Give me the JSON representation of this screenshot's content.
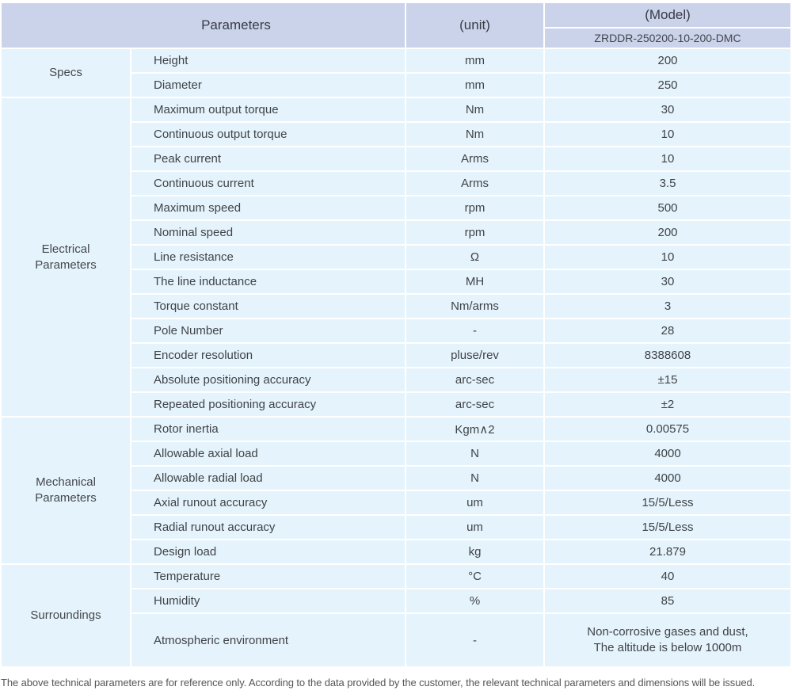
{
  "colors": {
    "header_bg": "#cbd3eb",
    "row_bg": "#e5f3fc",
    "grid": "#ffffff",
    "text": "#3f4347",
    "footer_text": "#555555"
  },
  "table": {
    "header": {
      "parameters": "Parameters",
      "unit": "(unit)",
      "model": "(Model)",
      "model_number": "ZRDDR-250200-10-200-DMC"
    },
    "groups": [
      {
        "label": "Specs",
        "rows": [
          {
            "parameter": "Height",
            "unit": "mm",
            "value": "200"
          },
          {
            "parameter": "Diameter",
            "unit": "mm",
            "value": "250"
          }
        ]
      },
      {
        "label": "Electrical\nParameters",
        "rows": [
          {
            "parameter": "Maximum output torque",
            "unit": "Nm",
            "value": "30"
          },
          {
            "parameter": "Continuous output torque",
            "unit": "Nm",
            "value": "10"
          },
          {
            "parameter": "Peak current",
            "unit": "Arms",
            "value": "10"
          },
          {
            "parameter": "Continuous current",
            "unit": "Arms",
            "value": "3.5"
          },
          {
            "parameter": "Maximum speed",
            "unit": "rpm",
            "value": "500"
          },
          {
            "parameter": "Nominal speed",
            "unit": "rpm",
            "value": "200"
          },
          {
            "parameter": "Line resistance",
            "unit": "Ω",
            "value": "10"
          },
          {
            "parameter": "The line inductance",
            "unit": "MH",
            "value": "30"
          },
          {
            "parameter": "Torque constant",
            "unit": "Nm/arms",
            "value": "3"
          },
          {
            "parameter": "Pole Number",
            "unit": "-",
            "value": "28"
          },
          {
            "parameter": "Encoder resolution",
            "unit": "pluse/rev",
            "value": "8388608"
          },
          {
            "parameter": "Absolute positioning accuracy",
            "unit": "arc-sec",
            "value": "±15"
          },
          {
            "parameter": "Repeated positioning accuracy",
            "unit": "arc-sec",
            "value": "±2"
          }
        ]
      },
      {
        "label": "Mechanical\nParameters",
        "rows": [
          {
            "parameter": "Rotor inertia",
            "unit": "Kgm∧2",
            "value": "0.00575"
          },
          {
            "parameter": "Allowable axial load",
            "unit": "N",
            "value": "4000"
          },
          {
            "parameter": "Allowable radial load",
            "unit": "N",
            "value": "4000"
          },
          {
            "parameter": "Axial runout accuracy",
            "unit": "um",
            "value": "15/5/Less"
          },
          {
            "parameter": "Radial runout accuracy",
            "unit": "um",
            "value": "15/5/Less"
          },
          {
            "parameter": "Design load",
            "unit": "kg",
            "value": "21.879"
          }
        ]
      },
      {
        "label": "Surroundings",
        "rows": [
          {
            "parameter": "Temperature",
            "unit": "°C",
            "value": "40"
          },
          {
            "parameter": "Humidity",
            "unit": "%",
            "value": "85"
          },
          {
            "parameter": "Atmospheric environment",
            "unit": "-",
            "value": "Non-corrosive gases and dust,\nThe altitude is below 1000m"
          }
        ]
      }
    ]
  },
  "footer": {
    "note": "The above technical parameters are for reference only. According to the data provided by the customer, the relevant technical parameters and dimensions will be issued."
  }
}
